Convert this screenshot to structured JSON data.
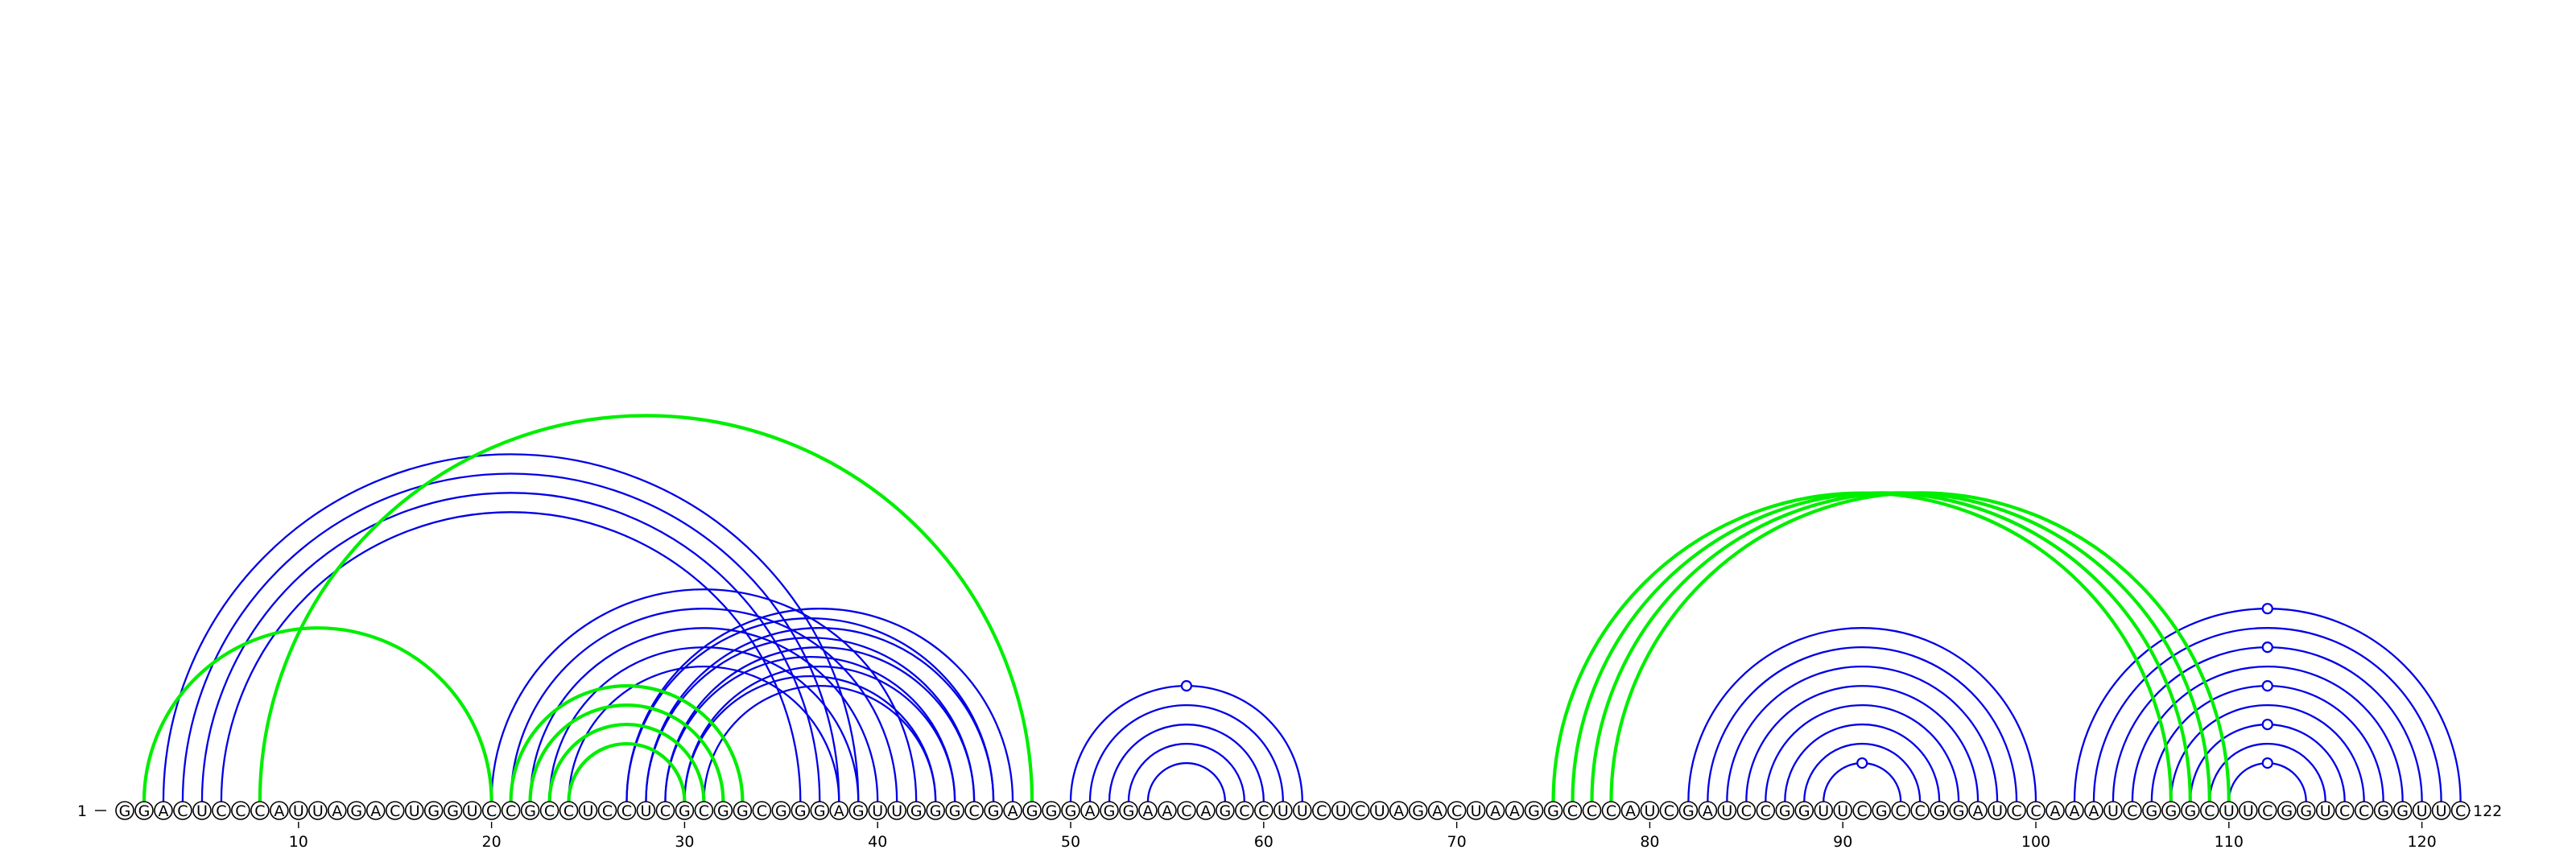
{
  "colors": {
    "blue": "#0000e6",
    "green": "#00ee00"
  },
  "sequence": "GGACUCCCAUUAGACUGGUCCGCCUCCUCGCGGCGGGAGUUGGGCGAGGGAGGAACAGCCUUCUCUAGACUAAGGCCCAUCGAUCCGGUUCGCCGGAUCCAAAUCGGGCUUCGGUCCGGUUC",
  "labels": {
    "start": "1",
    "end": "122"
  },
  "ticks": [
    "10",
    "20",
    "30",
    "40",
    "50",
    "60",
    "70",
    "80",
    "90",
    "100",
    "110",
    "120"
  ],
  "tick_positions": [
    10,
    20,
    30,
    40,
    50,
    60,
    70,
    80,
    90,
    100,
    110,
    120
  ],
  "arcs": {
    "blue": [
      [
        3,
        39
      ],
      [
        4,
        38
      ],
      [
        5,
        37
      ],
      [
        6,
        36
      ],
      [
        20,
        42
      ],
      [
        21,
        41
      ],
      [
        22,
        40
      ],
      [
        23,
        39
      ],
      [
        24,
        38
      ],
      [
        27,
        47
      ],
      [
        28,
        46
      ],
      [
        29,
        45
      ],
      [
        30,
        44
      ],
      [
        31,
        43
      ],
      [
        27,
        46
      ],
      [
        28,
        45
      ],
      [
        29,
        44
      ],
      [
        30,
        43
      ],
      [
        50,
        62
      ],
      [
        51,
        61
      ],
      [
        52,
        60
      ],
      [
        53,
        59
      ],
      [
        54,
        58
      ],
      [
        82,
        100
      ],
      [
        83,
        99
      ],
      [
        84,
        98
      ],
      [
        85,
        97
      ],
      [
        86,
        96
      ],
      [
        87,
        95
      ],
      [
        88,
        94
      ],
      [
        89,
        93
      ],
      [
        102,
        122
      ],
      [
        103,
        121
      ],
      [
        104,
        120
      ],
      [
        105,
        119
      ],
      [
        106,
        118
      ],
      [
        107,
        117
      ],
      [
        108,
        116
      ],
      [
        109,
        115
      ],
      [
        110,
        114
      ]
    ],
    "green": [
      [
        2,
        20
      ],
      [
        8,
        48
      ],
      [
        21,
        33
      ],
      [
        22,
        32
      ],
      [
        23,
        31
      ],
      [
        24,
        30
      ],
      [
        75,
        107
      ],
      [
        76,
        108
      ],
      [
        77,
        109
      ],
      [
        78,
        110
      ]
    ]
  },
  "loop_markers": [
    56,
    91,
    112
  ]
}
